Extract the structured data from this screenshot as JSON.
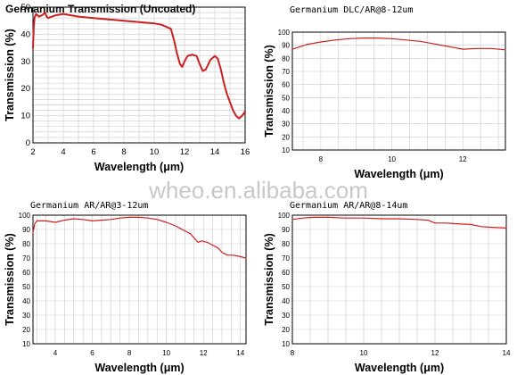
{
  "watermark": "wheo.en.alibaba.com",
  "chart_data": [
    {
      "type": "line",
      "title": "Germanium Transmission (Uncoated)",
      "title_style": "bold",
      "xlabel": "Wavelength (μm)",
      "ylabel": "Transmission (%)",
      "xlim": [
        2,
        16
      ],
      "ylim": [
        0,
        50
      ],
      "xticks": [
        2,
        4,
        6,
        8,
        10,
        12,
        14,
        16
      ],
      "yticks": [
        0,
        10,
        20,
        30,
        40,
        50
      ],
      "grid": true,
      "series_color": "#cc1f1f",
      "series": [
        {
          "x": [
            2.0,
            2.05,
            2.1,
            2.2,
            2.4,
            2.6,
            2.8,
            2.9,
            3.0,
            3.5,
            4.0,
            4.5,
            5.0,
            6.0,
            7.0,
            8.0,
            9.0,
            10.0,
            10.5,
            10.9,
            11.1,
            11.3,
            11.5,
            11.7,
            11.85,
            12.0,
            12.2,
            12.5,
            12.8,
            13.0,
            13.2,
            13.4,
            13.7,
            14.0,
            14.2,
            14.4,
            14.6,
            14.8,
            15.0,
            15.2,
            15.4,
            15.6,
            15.8,
            16.0
          ],
          "y": [
            35,
            42,
            46,
            47.5,
            46.5,
            47,
            48,
            46.5,
            46,
            47,
            47.5,
            47,
            46.5,
            46,
            45.5,
            45,
            44.5,
            44,
            43.5,
            42.5,
            42,
            38,
            33,
            29,
            28,
            30,
            32,
            32.5,
            32,
            29,
            26.5,
            27,
            30.5,
            32,
            31,
            27,
            22,
            18,
            15,
            12,
            10,
            9,
            10,
            11.5
          ]
        }
      ]
    },
    {
      "type": "line",
      "title": "Germanium DLC/AR@8-12um",
      "xlabel": "Wavelength (μm)",
      "ylabel": "Transmission (%)",
      "xlim": [
        7.2,
        13.2
      ],
      "ylim": [
        10,
        100
      ],
      "xticks": [
        8,
        10,
        12
      ],
      "yticks": [
        10,
        20,
        30,
        40,
        50,
        60,
        70,
        80,
        90,
        100
      ],
      "grid": true,
      "series_color": "#cc1f1f",
      "series": [
        {
          "x": [
            7.2,
            7.6,
            8.0,
            8.4,
            8.8,
            9.2,
            9.6,
            10.0,
            10.4,
            10.8,
            11.2,
            11.6,
            12.0,
            12.4,
            12.8,
            13.2
          ],
          "y": [
            87,
            90.5,
            92.5,
            94,
            95,
            95.5,
            95.5,
            95,
            94,
            93,
            91,
            89,
            87,
            87.5,
            87.5,
            86.5
          ]
        }
      ]
    },
    {
      "type": "line",
      "title": "Germanium AR/AR@3-12um",
      "xlabel": "Wavelength (μm)",
      "ylabel": "Transmission (%)",
      "xlim": [
        2.8,
        14.3
      ],
      "ylim": [
        10,
        100
      ],
      "xticks": [
        4,
        6,
        8,
        10,
        12,
        14
      ],
      "yticks": [
        10,
        20,
        30,
        40,
        50,
        60,
        70,
        80,
        90,
        100
      ],
      "grid": true,
      "series_color": "#cc1f1f",
      "series": [
        {
          "x": [
            2.8,
            2.9,
            3.0,
            3.5,
            4.0,
            4.5,
            5.0,
            5.5,
            6.0,
            6.5,
            7.0,
            7.5,
            8.0,
            8.5,
            9.0,
            9.5,
            10.0,
            10.5,
            11.0,
            11.3,
            11.5,
            11.7,
            11.9,
            12.2,
            12.5,
            12.8,
            13.0,
            13.3,
            13.6,
            14.0,
            14.3
          ],
          "y": [
            88,
            94,
            96,
            96,
            95,
            96.5,
            97.5,
            97,
            96,
            96.5,
            97,
            98,
            98.5,
            98.5,
            98,
            97,
            95,
            92.5,
            89,
            87,
            84,
            81,
            82,
            81,
            79,
            77,
            74,
            72,
            72,
            71,
            70
          ]
        }
      ]
    },
    {
      "type": "line",
      "title": "Germanium AR/AR@8-14um",
      "xlabel": "Wavelength (μm)",
      "ylabel": "Transmission (%)",
      "xlim": [
        8,
        14
      ],
      "ylim": [
        10,
        100
      ],
      "xticks": [
        8,
        10,
        12,
        14
      ],
      "yticks": [
        10,
        20,
        30,
        40,
        50,
        60,
        70,
        80,
        90,
        100
      ],
      "grid": true,
      "series_color": "#cc1f1f",
      "series": [
        {
          "x": [
            8.0,
            8.3,
            8.6,
            9.0,
            9.5,
            10.0,
            10.5,
            11.0,
            11.5,
            11.8,
            12.0,
            12.3,
            12.6,
            13.0,
            13.3,
            13.6,
            14.0
          ],
          "y": [
            97,
            98,
            98.5,
            98.5,
            98,
            98,
            97.5,
            97.5,
            97,
            96.5,
            94.5,
            94.5,
            94,
            93.5,
            92,
            91.5,
            91
          ]
        }
      ]
    }
  ]
}
